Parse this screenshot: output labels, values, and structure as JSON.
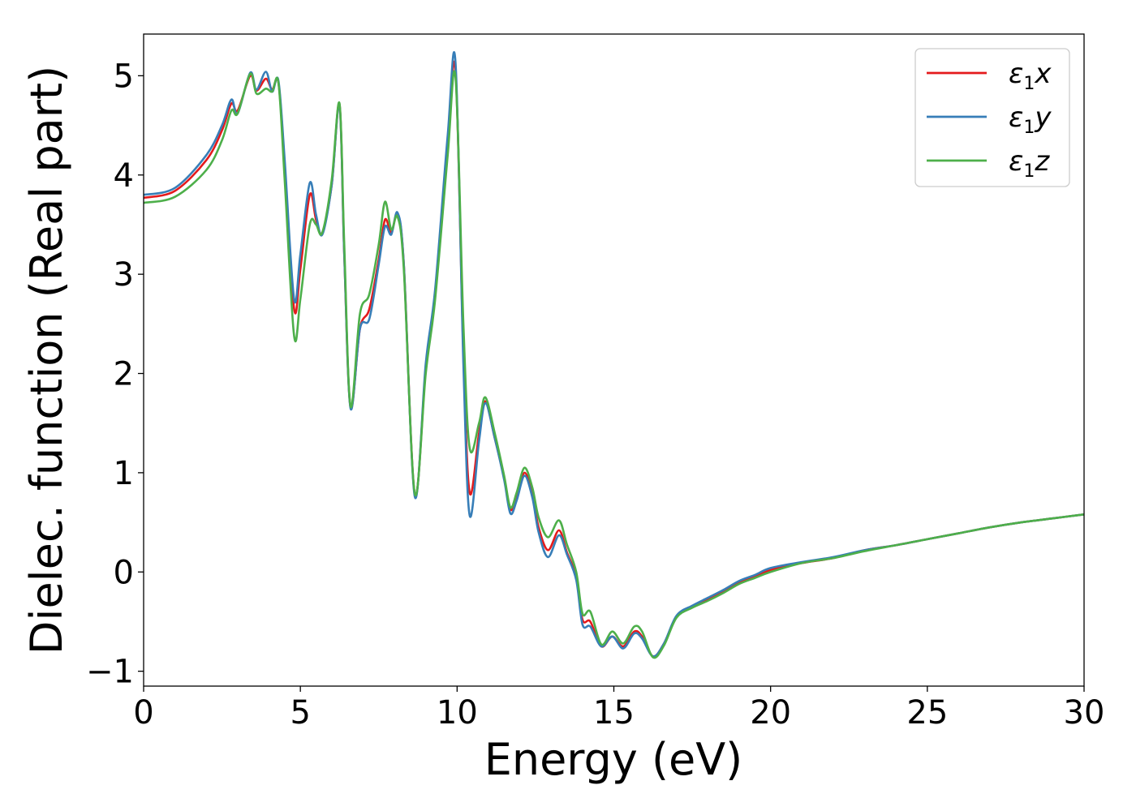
{
  "chart_data": {
    "type": "line",
    "xlabel": "Energy (eV)",
    "ylabel": "Dielec. function (Real part)",
    "xlim": [
      0,
      30
    ],
    "ylim": [
      -1.15,
      5.42
    ],
    "grid": false,
    "legend_position": "top-right",
    "xticks": [
      "0",
      "5",
      "10",
      "15",
      "20",
      "25",
      "30"
    ],
    "yticks": [
      "−1",
      "0",
      "1",
      "2",
      "3",
      "4",
      "5"
    ],
    "series": [
      {
        "name": "ε₁x",
        "legend_base": "ε",
        "legend_sub": "1",
        "legend_var": "x",
        "color": "#e41a1c",
        "points": [
          [
            0,
            3.77
          ],
          [
            1,
            3.84
          ],
          [
            2,
            4.15
          ],
          [
            2.5,
            4.45
          ],
          [
            2.8,
            4.72
          ],
          [
            3.0,
            4.65
          ],
          [
            3.4,
            5.0
          ],
          [
            3.6,
            4.85
          ],
          [
            3.9,
            4.97
          ],
          [
            4.1,
            4.86
          ],
          [
            4.3,
            4.93
          ],
          [
            4.5,
            4.1
          ],
          [
            4.8,
            2.65
          ],
          [
            5.0,
            3.05
          ],
          [
            5.3,
            3.8
          ],
          [
            5.5,
            3.55
          ],
          [
            5.7,
            3.42
          ],
          [
            6.0,
            3.9
          ],
          [
            6.25,
            4.71
          ],
          [
            6.4,
            3.2
          ],
          [
            6.6,
            1.66
          ],
          [
            6.9,
            2.45
          ],
          [
            7.2,
            2.65
          ],
          [
            7.5,
            3.15
          ],
          [
            7.7,
            3.55
          ],
          [
            7.9,
            3.42
          ],
          [
            8.1,
            3.6
          ],
          [
            8.3,
            3.1
          ],
          [
            8.65,
            0.78
          ],
          [
            9.0,
            2.05
          ],
          [
            9.3,
            2.8
          ],
          [
            9.7,
            4.3
          ],
          [
            9.95,
            5.05
          ],
          [
            10.2,
            2.2
          ],
          [
            10.4,
            0.8
          ],
          [
            10.7,
            1.4
          ],
          [
            10.9,
            1.72
          ],
          [
            11.2,
            1.35
          ],
          [
            11.5,
            0.95
          ],
          [
            11.7,
            0.63
          ],
          [
            11.9,
            0.75
          ],
          [
            12.15,
            1.0
          ],
          [
            12.4,
            0.78
          ],
          [
            12.6,
            0.45
          ],
          [
            12.9,
            0.22
          ],
          [
            13.25,
            0.42
          ],
          [
            13.5,
            0.2
          ],
          [
            13.8,
            -0.05
          ],
          [
            14.0,
            -0.48
          ],
          [
            14.25,
            -0.5
          ],
          [
            14.6,
            -0.75
          ],
          [
            14.95,
            -0.65
          ],
          [
            15.3,
            -0.75
          ],
          [
            15.65,
            -0.6
          ],
          [
            15.9,
            -0.65
          ],
          [
            16.25,
            -0.85
          ],
          [
            16.6,
            -0.72
          ],
          [
            17.0,
            -0.45
          ],
          [
            17.5,
            -0.35
          ],
          [
            18.0,
            -0.28
          ],
          [
            18.5,
            -0.2
          ],
          [
            19.0,
            -0.1
          ],
          [
            19.5,
            -0.05
          ],
          [
            20.0,
            0.02
          ],
          [
            21.0,
            0.09
          ],
          [
            22.0,
            0.14
          ],
          [
            23.0,
            0.22
          ],
          [
            24.0,
            0.27
          ],
          [
            25.0,
            0.33
          ],
          [
            26.0,
            0.39
          ],
          [
            27.0,
            0.45
          ],
          [
            28.0,
            0.5
          ],
          [
            29.0,
            0.54
          ],
          [
            30.0,
            0.58
          ]
        ]
      },
      {
        "name": "ε₁y",
        "legend_base": "ε",
        "legend_sub": "1",
        "legend_var": "y",
        "color": "#377eb8",
        "points": [
          [
            0,
            3.8
          ],
          [
            1,
            3.87
          ],
          [
            2,
            4.2
          ],
          [
            2.5,
            4.5
          ],
          [
            2.8,
            4.76
          ],
          [
            3.0,
            4.62
          ],
          [
            3.4,
            5.03
          ],
          [
            3.6,
            4.86
          ],
          [
            3.9,
            5.04
          ],
          [
            4.1,
            4.84
          ],
          [
            4.3,
            4.95
          ],
          [
            4.5,
            4.15
          ],
          [
            4.8,
            2.75
          ],
          [
            5.0,
            3.2
          ],
          [
            5.3,
            3.92
          ],
          [
            5.5,
            3.6
          ],
          [
            5.7,
            3.4
          ],
          [
            6.0,
            3.9
          ],
          [
            6.25,
            4.7
          ],
          [
            6.4,
            3.2
          ],
          [
            6.6,
            1.65
          ],
          [
            6.9,
            2.45
          ],
          [
            7.2,
            2.55
          ],
          [
            7.5,
            3.1
          ],
          [
            7.7,
            3.48
          ],
          [
            7.9,
            3.4
          ],
          [
            8.1,
            3.62
          ],
          [
            8.3,
            3.1
          ],
          [
            8.65,
            0.76
          ],
          [
            9.0,
            2.1
          ],
          [
            9.3,
            2.85
          ],
          [
            9.7,
            4.4
          ],
          [
            9.95,
            5.13
          ],
          [
            10.2,
            2.1
          ],
          [
            10.4,
            0.57
          ],
          [
            10.7,
            1.32
          ],
          [
            10.9,
            1.7
          ],
          [
            11.2,
            1.35
          ],
          [
            11.5,
            0.93
          ],
          [
            11.7,
            0.59
          ],
          [
            11.9,
            0.72
          ],
          [
            12.15,
            0.97
          ],
          [
            12.4,
            0.75
          ],
          [
            12.6,
            0.4
          ],
          [
            12.9,
            0.15
          ],
          [
            13.25,
            0.37
          ],
          [
            13.5,
            0.18
          ],
          [
            13.8,
            -0.08
          ],
          [
            14.0,
            -0.53
          ],
          [
            14.25,
            -0.55
          ],
          [
            14.6,
            -0.75
          ],
          [
            14.95,
            -0.65
          ],
          [
            15.3,
            -0.77
          ],
          [
            15.65,
            -0.62
          ],
          [
            15.9,
            -0.67
          ],
          [
            16.25,
            -0.85
          ],
          [
            16.6,
            -0.72
          ],
          [
            17.0,
            -0.44
          ],
          [
            17.5,
            -0.34
          ],
          [
            18.0,
            -0.26
          ],
          [
            18.5,
            -0.18
          ],
          [
            19.0,
            -0.09
          ],
          [
            19.5,
            -0.03
          ],
          [
            20.0,
            0.04
          ],
          [
            21.0,
            0.1
          ],
          [
            22.0,
            0.15
          ],
          [
            23.0,
            0.22
          ],
          [
            24.0,
            0.27
          ],
          [
            25.0,
            0.33
          ],
          [
            26.0,
            0.39
          ],
          [
            27.0,
            0.45
          ],
          [
            28.0,
            0.5
          ],
          [
            29.0,
            0.54
          ],
          [
            30.0,
            0.58
          ]
        ]
      },
      {
        "name": "ε₁z",
        "legend_base": "ε",
        "legend_sub": "1",
        "legend_var": "z",
        "color": "#4daf4a",
        "points": [
          [
            0,
            3.72
          ],
          [
            1,
            3.78
          ],
          [
            2,
            4.05
          ],
          [
            2.5,
            4.35
          ],
          [
            2.8,
            4.65
          ],
          [
            3.0,
            4.62
          ],
          [
            3.4,
            5.02
          ],
          [
            3.6,
            4.82
          ],
          [
            3.9,
            4.87
          ],
          [
            4.1,
            4.84
          ],
          [
            4.3,
            4.93
          ],
          [
            4.5,
            3.95
          ],
          [
            4.8,
            2.38
          ],
          [
            5.0,
            2.75
          ],
          [
            5.3,
            3.5
          ],
          [
            5.5,
            3.5
          ],
          [
            5.7,
            3.42
          ],
          [
            6.0,
            3.95
          ],
          [
            6.25,
            4.72
          ],
          [
            6.4,
            3.3
          ],
          [
            6.6,
            1.67
          ],
          [
            6.9,
            2.6
          ],
          [
            7.2,
            2.8
          ],
          [
            7.5,
            3.3
          ],
          [
            7.7,
            3.73
          ],
          [
            7.9,
            3.45
          ],
          [
            8.1,
            3.58
          ],
          [
            8.3,
            3.05
          ],
          [
            8.65,
            0.79
          ],
          [
            9.0,
            2.0
          ],
          [
            9.3,
            2.75
          ],
          [
            9.7,
            4.2
          ],
          [
            9.95,
            4.98
          ],
          [
            10.2,
            2.5
          ],
          [
            10.4,
            1.25
          ],
          [
            10.7,
            1.5
          ],
          [
            10.9,
            1.76
          ],
          [
            11.2,
            1.4
          ],
          [
            11.5,
            0.97
          ],
          [
            11.7,
            0.65
          ],
          [
            11.9,
            0.8
          ],
          [
            12.15,
            1.05
          ],
          [
            12.4,
            0.85
          ],
          [
            12.6,
            0.55
          ],
          [
            12.9,
            0.35
          ],
          [
            13.25,
            0.52
          ],
          [
            13.5,
            0.28
          ],
          [
            13.8,
            0.0
          ],
          [
            14.0,
            -0.42
          ],
          [
            14.25,
            -0.4
          ],
          [
            14.6,
            -0.73
          ],
          [
            14.95,
            -0.6
          ],
          [
            15.3,
            -0.72
          ],
          [
            15.65,
            -0.55
          ],
          [
            15.9,
            -0.6
          ],
          [
            16.25,
            -0.86
          ],
          [
            16.6,
            -0.74
          ],
          [
            17.0,
            -0.46
          ],
          [
            17.5,
            -0.36
          ],
          [
            18.0,
            -0.29
          ],
          [
            18.5,
            -0.21
          ],
          [
            19.0,
            -0.12
          ],
          [
            19.5,
            -0.06
          ],
          [
            20.0,
            0.0
          ],
          [
            21.0,
            0.09
          ],
          [
            22.0,
            0.14
          ],
          [
            23.0,
            0.21
          ],
          [
            24.0,
            0.27
          ],
          [
            25.0,
            0.33
          ],
          [
            26.0,
            0.39
          ],
          [
            27.0,
            0.45
          ],
          [
            28.0,
            0.5
          ],
          [
            29.0,
            0.54
          ],
          [
            30.0,
            0.58
          ]
        ]
      }
    ]
  }
}
